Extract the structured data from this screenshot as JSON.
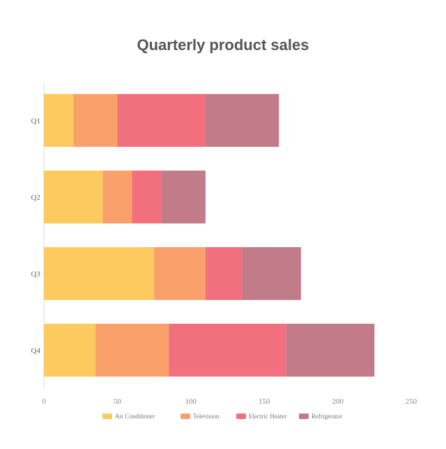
{
  "chart_data": {
    "type": "bar",
    "orientation": "horizontal",
    "stacked": true,
    "title": "Quarterly product sales",
    "categories": [
      "Q1",
      "Q2",
      "Q3",
      "Q4"
    ],
    "series": [
      {
        "name": "Air Conditioner",
        "color": "#fdca60",
        "values": [
          20,
          40,
          75,
          35
        ]
      },
      {
        "name": "Television",
        "color": "#f9a06b",
        "values": [
          30,
          20,
          35,
          50
        ]
      },
      {
        "name": "Electric Heater",
        "color": "#f2707e",
        "values": [
          60,
          20,
          25,
          80
        ]
      },
      {
        "name": "Refrigerator",
        "color": "#c27b89",
        "values": [
          50,
          30,
          40,
          60
        ]
      }
    ],
    "xlim": [
      0,
      250
    ],
    "xticks": [
      0,
      50,
      100,
      150,
      200,
      250
    ],
    "grid": false,
    "legend_position": "bottom"
  }
}
